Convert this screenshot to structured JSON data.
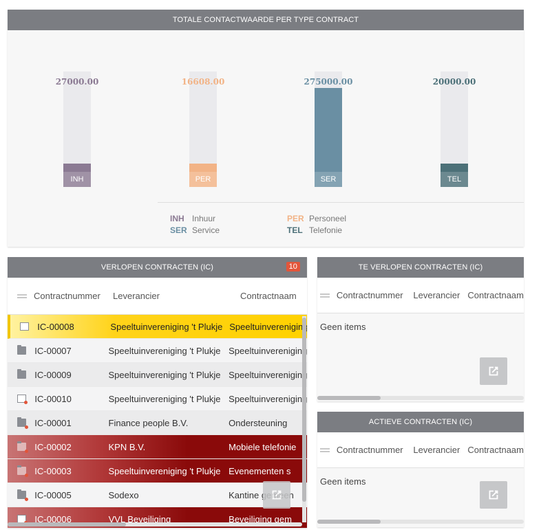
{
  "chart_panel": {
    "title": "TOTALE CONTACTWAARDE PER TYPE CONTRACT",
    "chart_data": {
      "type": "bar",
      "categories": [
        "INH",
        "PER",
        "SER",
        "TEL"
      ],
      "values": [
        27000.0,
        16608.0,
        275000.0,
        20000.0
      ],
      "value_labels": [
        "27000.00",
        "16608.00",
        "275000.00",
        "20000.00"
      ],
      "ylim": [
        0,
        275000
      ],
      "colors": [
        "#8b7a93",
        "#f2b386",
        "#6a8fa3",
        "#4c7078"
      ],
      "legend": [
        {
          "code": "INH",
          "name": "Inhuur"
        },
        {
          "code": "PER",
          "name": "Personeel"
        },
        {
          "code": "SER",
          "name": "Service"
        },
        {
          "code": "TEL",
          "name": "Telefonie"
        }
      ],
      "legend_placement": "bottom"
    }
  },
  "expired_panel": {
    "title": "VERLOPEN CONTRACTEN (IC)",
    "badge": "10",
    "columns": [
      "Contractnummer",
      "Leverancier",
      "Contractnaam"
    ],
    "rows": [
      {
        "icon": "document-icon",
        "status": "yellow",
        "number": "IC-00008",
        "supplier": "Speeltuinvereniging 't Plukje",
        "name": "Speeltuinvereniging"
      },
      {
        "icon": "folder-icon",
        "status": "normal",
        "number": "IC-00007",
        "supplier": "Speeltuinvereniging 't Plukje",
        "name": "Speeltuinvereniging"
      },
      {
        "icon": "folder-icon",
        "status": "normal",
        "number": "IC-00009",
        "supplier": "Speeltuinvereniging 't Plukje",
        "name": "Speeltuinvereniging"
      },
      {
        "icon": "document-icon",
        "status": "normal",
        "number": "IC-00010",
        "supplier": "Speeltuinvereniging 't Plukje",
        "name": "Speeltuinvereniging"
      },
      {
        "icon": "folder-icon",
        "status": "normal",
        "number": "IC-00001",
        "supplier": "Finance people B.V.",
        "name": "Ondersteuning"
      },
      {
        "icon": "folder-icon",
        "status": "red",
        "number": "IC-00002",
        "supplier": "KPN B.V.",
        "name": "Mobiele telefonie"
      },
      {
        "icon": "folder-icon",
        "status": "red",
        "number": "IC-00003",
        "supplier": "Speeltuinvereniging 't Plukje",
        "name": "Evenementen s"
      },
      {
        "icon": "folder-icon",
        "status": "normal",
        "number": "IC-00005",
        "supplier": "Sodexo",
        "name": "Kantine gemeen"
      },
      {
        "icon": "document-icon",
        "status": "red",
        "number": "IC-00006",
        "supplier": "VVL Beveiliging",
        "name": "Beveiliging gem"
      }
    ]
  },
  "expiring_panel": {
    "title": "TE VERLOPEN CONTRACTEN (IC)",
    "columns": [
      "Contractnummer",
      "Leverancier",
      "Contractnaam"
    ],
    "empty_text": "Geen items"
  },
  "active_panel": {
    "title": "ACTIEVE CONTRACTEN (IC)",
    "columns": [
      "Contractnummer",
      "Leverancier",
      "Contractnaam"
    ],
    "empty_text": "Geen items"
  }
}
